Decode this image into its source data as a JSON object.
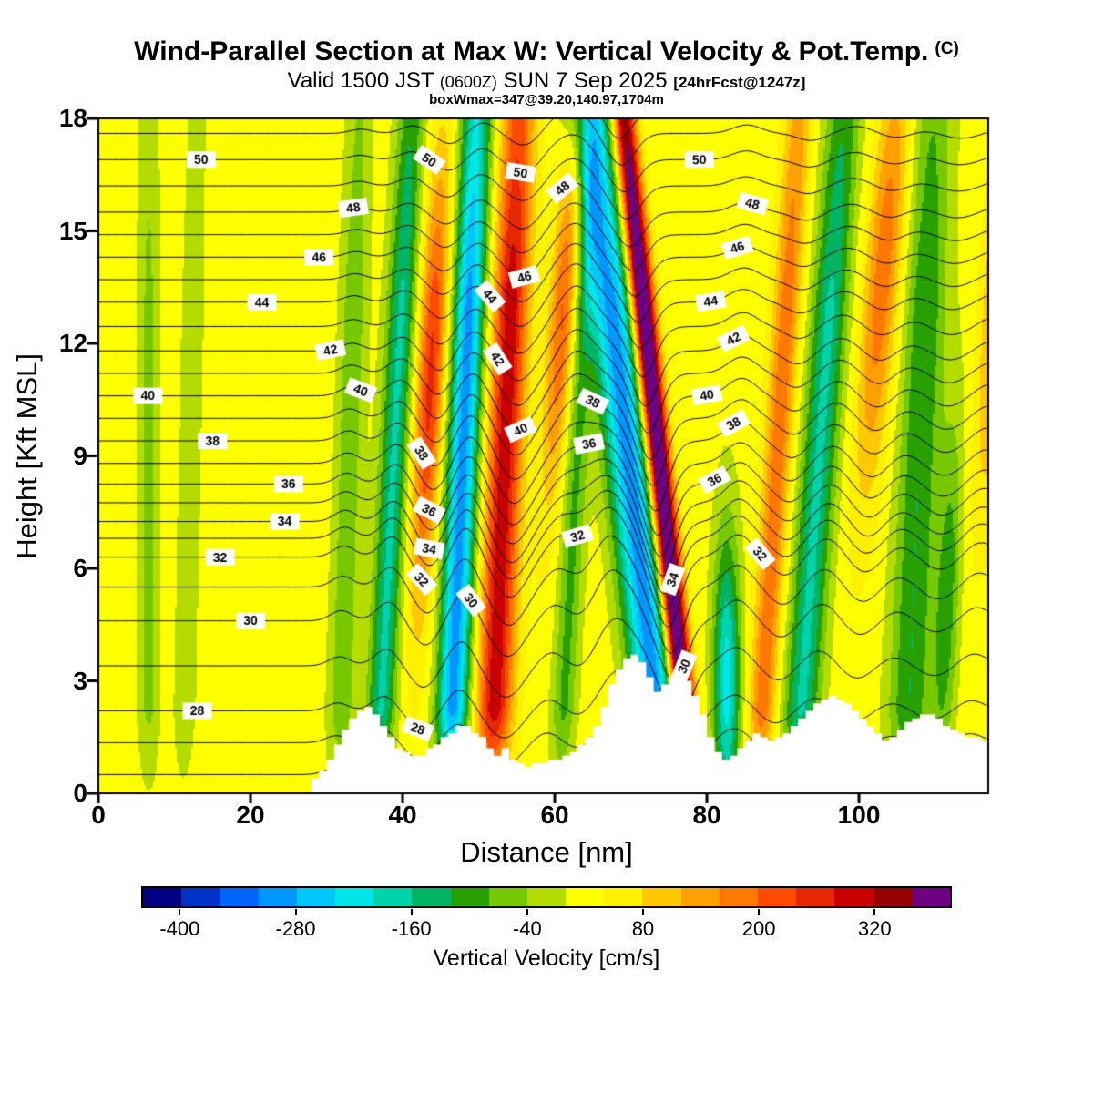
{
  "chart_data": {
    "type": "heatmap",
    "title": "Wind-Parallel Section at Max W: Vertical Velocity & Pot.Temp.",
    "title_suffix": "(C)",
    "subtitle": {
      "valid": "Valid 1500 JST",
      "utc": "(0600Z)",
      "date": "SUN 7 Sep 2025",
      "fcst": "[24hrFcst@1247z]"
    },
    "note": "boxWmax=347@39.20,140.97,1704m",
    "xlabel": "Distance [nm]",
    "ylabel": "Height [Kft MSL]",
    "xlim": [
      0,
      117
    ],
    "ylim": [
      0,
      18
    ],
    "x_ticks": [
      0,
      20,
      40,
      60,
      80,
      100
    ],
    "y_ticks": [
      0,
      3,
      6,
      9,
      12,
      15,
      18
    ],
    "colorbar": {
      "label": "Vertical Velocity [cm/s]",
      "tick_labels": [
        -400,
        -280,
        -160,
        -40,
        80,
        200,
        320
      ],
      "range": [
        -440,
        400
      ],
      "levels": [
        -400,
        -360,
        -320,
        -280,
        -240,
        -200,
        -160,
        -120,
        -80,
        -40,
        0,
        40,
        80,
        120,
        160,
        200,
        240,
        280,
        320,
        360
      ],
      "colors": [
        "#000082",
        "#0032C8",
        "#0064FF",
        "#0096FF",
        "#00C8FF",
        "#00E6E6",
        "#00D2AA",
        "#00B464",
        "#28A000",
        "#78C800",
        "#B4DC00",
        "#FFFF00",
        "#FFF000",
        "#FFC800",
        "#FFA000",
        "#FF7800",
        "#FF4B00",
        "#E62800",
        "#C80000",
        "#960000",
        "#6E0082"
      ]
    },
    "w_field": {
      "baseline": 20,
      "bands": [
        {
          "c": 6.5,
          "w": 1.4,
          "a": -70
        },
        {
          "c": 11,
          "w": 1.5,
          "a": -50,
          "t": 0.1
        },
        {
          "c": 31.5,
          "w": 1.8,
          "a": -90,
          "t": 0.15
        },
        {
          "c": 36.5,
          "w": 1.9,
          "a": -190,
          "t": 0.25
        },
        {
          "c": 40.8,
          "w": 1.9,
          "a": 235,
          "t": 0.25,
          "zc": 11,
          "zw": 6
        },
        {
          "c": 46,
          "w": 2.1,
          "a": -320,
          "t": 0.2
        },
        {
          "c": 51.5,
          "w": 2.3,
          "a": 290,
          "t": 0.2
        },
        {
          "c": 56.5,
          "w": 1.8,
          "a": 190,
          "t": 0.35,
          "zc": 13,
          "zw": 5
        },
        {
          "c": 60.5,
          "w": 1.6,
          "a": -110,
          "t": 0.25
        },
        {
          "c": 74.5,
          "w": 3,
          "a": -320,
          "t": -0.55
        },
        {
          "c": 78,
          "w": 1.5,
          "a": 500,
          "t": -0.5
        },
        {
          "c": 82.5,
          "w": 1.8,
          "a": -240,
          "zc": 3,
          "zw": 4
        },
        {
          "c": 86.5,
          "w": 1.8,
          "a": 170,
          "t": 0.3
        },
        {
          "c": 91.5,
          "w": 2.4,
          "a": -190,
          "t": 0.35
        },
        {
          "c": 97.5,
          "w": 2.4,
          "a": 170,
          "t": 0.4,
          "zc": 14,
          "zw": 6
        },
        {
          "c": 106,
          "w": 2.8,
          "a": -140,
          "t": 0.2
        },
        {
          "c": 110.5,
          "w": 1.6,
          "a": -120,
          "t": 0.2,
          "zc": 5,
          "zw": 5
        },
        {
          "c": 113.5,
          "w": 2,
          "a": 140,
          "t": 0.35,
          "zc": 14,
          "zw": 6
        }
      ]
    },
    "isentropes": {
      "units": "C",
      "z_by_theta": [
        [
          26,
          0.5
        ],
        [
          27,
          1.35
        ],
        [
          28,
          2.2
        ],
        [
          29,
          3.4
        ],
        [
          30,
          4.6
        ],
        [
          31,
          5.5
        ],
        [
          32,
          6.3
        ],
        [
          33,
          6.8
        ],
        [
          34,
          7.25
        ],
        [
          35,
          7.75
        ],
        [
          36,
          8.25
        ],
        [
          37,
          8.8
        ],
        [
          38,
          9.4
        ],
        [
          39,
          10.0
        ],
        [
          40,
          10.6
        ],
        [
          41,
          11.2
        ],
        [
          42,
          11.8
        ],
        [
          43,
          12.45
        ],
        [
          44,
          13.1
        ],
        [
          45,
          13.7
        ],
        [
          46,
          14.3
        ],
        [
          47,
          14.9
        ],
        [
          48,
          15.5
        ],
        [
          49,
          16.2
        ],
        [
          50,
          16.9
        ],
        [
          51,
          17.6
        ],
        [
          52,
          18.3
        ],
        [
          53,
          19.0
        ],
        [
          54,
          19.7
        ]
      ],
      "waves": [
        {
          "c": 31,
          "w": 2,
          "a": 0.3,
          "t": 0.2
        },
        {
          "c": 37,
          "w": 2.2,
          "a": 0.55,
          "t": 0.25
        },
        {
          "c": 42,
          "w": 2.4,
          "a": -0.75,
          "t": 0.25
        },
        {
          "c": 47,
          "w": 2.4,
          "a": 0.8,
          "t": 0.2
        },
        {
          "c": 53,
          "w": 3,
          "a": -1.1,
          "t": 0.2
        },
        {
          "c": 58.5,
          "w": 2.5,
          "a": 0.45,
          "t": 0.3
        },
        {
          "c": 63,
          "w": 2.5,
          "a": -0.35,
          "t": 0.25
        },
        {
          "c": 70,
          "w": 4,
          "a": 1.5,
          "t": -0.5
        },
        {
          "c": 77.5,
          "w": 2.6,
          "a": -2.0,
          "t": -0.5
        },
        {
          "c": 83.5,
          "w": 2.6,
          "a": 0.6,
          "t": 0.1
        },
        {
          "c": 88.5,
          "w": 2.6,
          "a": -0.5,
          "t": 0.3
        },
        {
          "c": 93.5,
          "w": 2.8,
          "a": 0.5,
          "t": 0.35
        },
        {
          "c": 98.5,
          "w": 2.8,
          "a": -0.45,
          "t": 0.4
        },
        {
          "c": 104,
          "w": 3,
          "a": 0.3,
          "t": 0.2
        },
        {
          "c": 109,
          "w": 3,
          "a": -0.35,
          "t": 0.25
        },
        {
          "c": 114,
          "w": 2.6,
          "a": 0.4,
          "t": 0.3
        }
      ],
      "labels": [
        {
          "v": 28,
          "x": 13
        },
        {
          "v": 28,
          "x": 42
        },
        {
          "v": 30,
          "x": 20
        },
        {
          "v": 30,
          "x": 49
        },
        {
          "v": 30,
          "x": 77
        },
        {
          "v": 32,
          "x": 16
        },
        {
          "v": 32,
          "x": 42.5
        },
        {
          "v": 32,
          "x": 63
        },
        {
          "v": 32,
          "x": 87
        },
        {
          "v": 34,
          "x": 24.5
        },
        {
          "v": 34,
          "x": 43.5
        },
        {
          "v": 34,
          "x": 75.5
        },
        {
          "v": 36,
          "x": 25
        },
        {
          "v": 36,
          "x": 43.5
        },
        {
          "v": 36,
          "x": 64.5
        },
        {
          "v": 36,
          "x": 81
        },
        {
          "v": 38,
          "x": 15
        },
        {
          "v": 38,
          "x": 42.5
        },
        {
          "v": 38,
          "x": 65
        },
        {
          "v": 38,
          "x": 83.5
        },
        {
          "v": 40,
          "x": 6.5
        },
        {
          "v": 40,
          "x": 34.5
        },
        {
          "v": 40,
          "x": 55.5
        },
        {
          "v": 40,
          "x": 80
        },
        {
          "v": 42,
          "x": 30.5
        },
        {
          "v": 42,
          "x": 52.5
        },
        {
          "v": 42,
          "x": 83.5
        },
        {
          "v": 44,
          "x": 21.5
        },
        {
          "v": 44,
          "x": 51.5
        },
        {
          "v": 44,
          "x": 80.5
        },
        {
          "v": 46,
          "x": 29
        },
        {
          "v": 46,
          "x": 56
        },
        {
          "v": 46,
          "x": 84
        },
        {
          "v": 48,
          "x": 33.5
        },
        {
          "v": 48,
          "x": 61
        },
        {
          "v": 48,
          "x": 86
        },
        {
          "v": 50,
          "x": 13.5
        },
        {
          "v": 50,
          "x": 43.5
        },
        {
          "v": 50,
          "x": 55.5
        },
        {
          "v": 50,
          "x": 79
        }
      ]
    },
    "terrain": {
      "x0": 28,
      "dx": 1,
      "h": [
        0.4,
        0.6,
        0.9,
        1.3,
        1.7,
        2.0,
        2.2,
        2.3,
        2.1,
        1.8,
        1.5,
        1.2,
        1.1,
        1.0,
        1.0,
        1.2,
        1.3,
        1.5,
        1.6,
        1.8,
        1.8,
        1.6,
        1.5,
        1.2,
        1.0,
        1.2,
        0.9,
        0.8,
        0.7,
        0.8,
        0.8,
        0.9,
        0.9,
        1.0,
        1.1,
        1.3,
        1.5,
        1.8,
        2.3,
        2.9,
        3.3,
        3.6,
        3.7,
        3.5,
        3.1,
        2.7,
        2.9,
        3.1,
        3.2,
        3.0,
        2.6,
        2.1,
        1.5,
        1.1,
        0.9,
        1.0,
        1.2,
        1.4,
        1.6,
        1.5,
        1.4,
        1.5,
        1.6,
        1.8,
        2.0,
        2.2,
        2.4,
        2.5,
        2.6,
        2.5,
        2.4,
        2.2,
        2.0,
        1.8,
        1.6,
        1.4,
        1.5,
        1.7,
        1.9,
        2.0,
        2.1,
        2.1,
        2.0,
        1.8,
        1.7,
        1.6,
        1.5,
        1.5,
        1.4,
        1.4
      ]
    }
  }
}
